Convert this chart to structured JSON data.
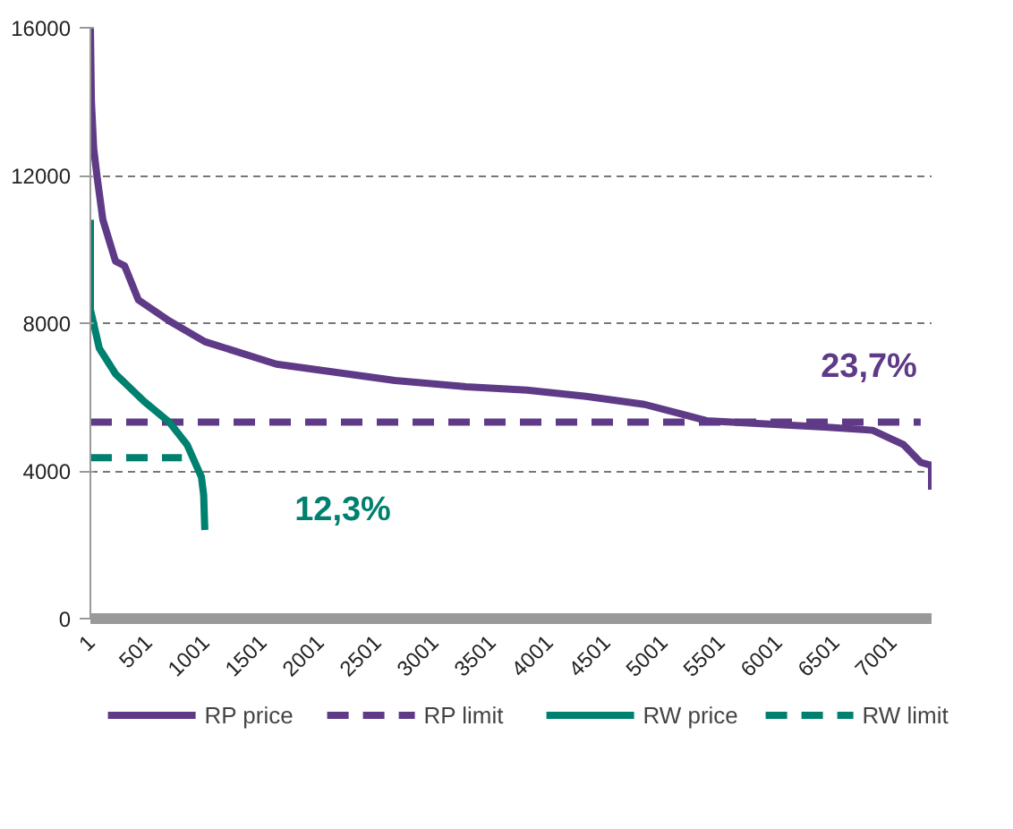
{
  "chart_data": {
    "type": "line",
    "xlim": [
      1,
      7345
    ],
    "ylim": [
      0,
      16000
    ],
    "xticks": [
      1,
      501,
      1001,
      1501,
      2001,
      2501,
      3001,
      3501,
      4001,
      4501,
      5001,
      5501,
      6001,
      6501,
      7001
    ],
    "yticks": [
      0,
      4000,
      8000,
      12000,
      16000
    ],
    "grid": "y",
    "legend": "bottom",
    "line_style": "solid",
    "marker": "none",
    "series": [
      {
        "name": "RP price",
        "color": "#5e3a87",
        "x": [
          1,
          10,
          30,
          58,
          110,
          220,
          300,
          420,
          690,
          1000,
          1625,
          2660,
          3280,
          3810,
          4330,
          4840,
          5380,
          6410,
          6830,
          7100,
          7250,
          7345,
          7345
        ],
        "values": [
          16000,
          14000,
          12730,
          12000,
          10800,
          9680,
          9550,
          8630,
          8060,
          7500,
          6890,
          6450,
          6280,
          6190,
          6020,
          5800,
          5360,
          5190,
          5100,
          4710,
          4230,
          4150,
          3490
        ]
      },
      {
        "name": "RP limit",
        "color": "#5e3a87",
        "line_style": "dashed",
        "x": [
          1,
          7250
        ],
        "values": [
          5320,
          5320
        ]
      },
      {
        "name": "RW price",
        "color": "#00806f",
        "x": [
          1,
          1,
          79,
          220,
          470,
          690,
          845,
          970,
          990,
          1000
        ],
        "values": [
          10800,
          8370,
          7320,
          6630,
          5880,
          5320,
          4710,
          3840,
          3350,
          2400
        ]
      },
      {
        "name": "RW limit",
        "color": "#00806f",
        "line_style": "dashed",
        "x": [
          1,
          800
        ],
        "values": [
          4360,
          4360
        ]
      }
    ],
    "annotations": [
      "23,7%",
      "12,3%"
    ]
  }
}
